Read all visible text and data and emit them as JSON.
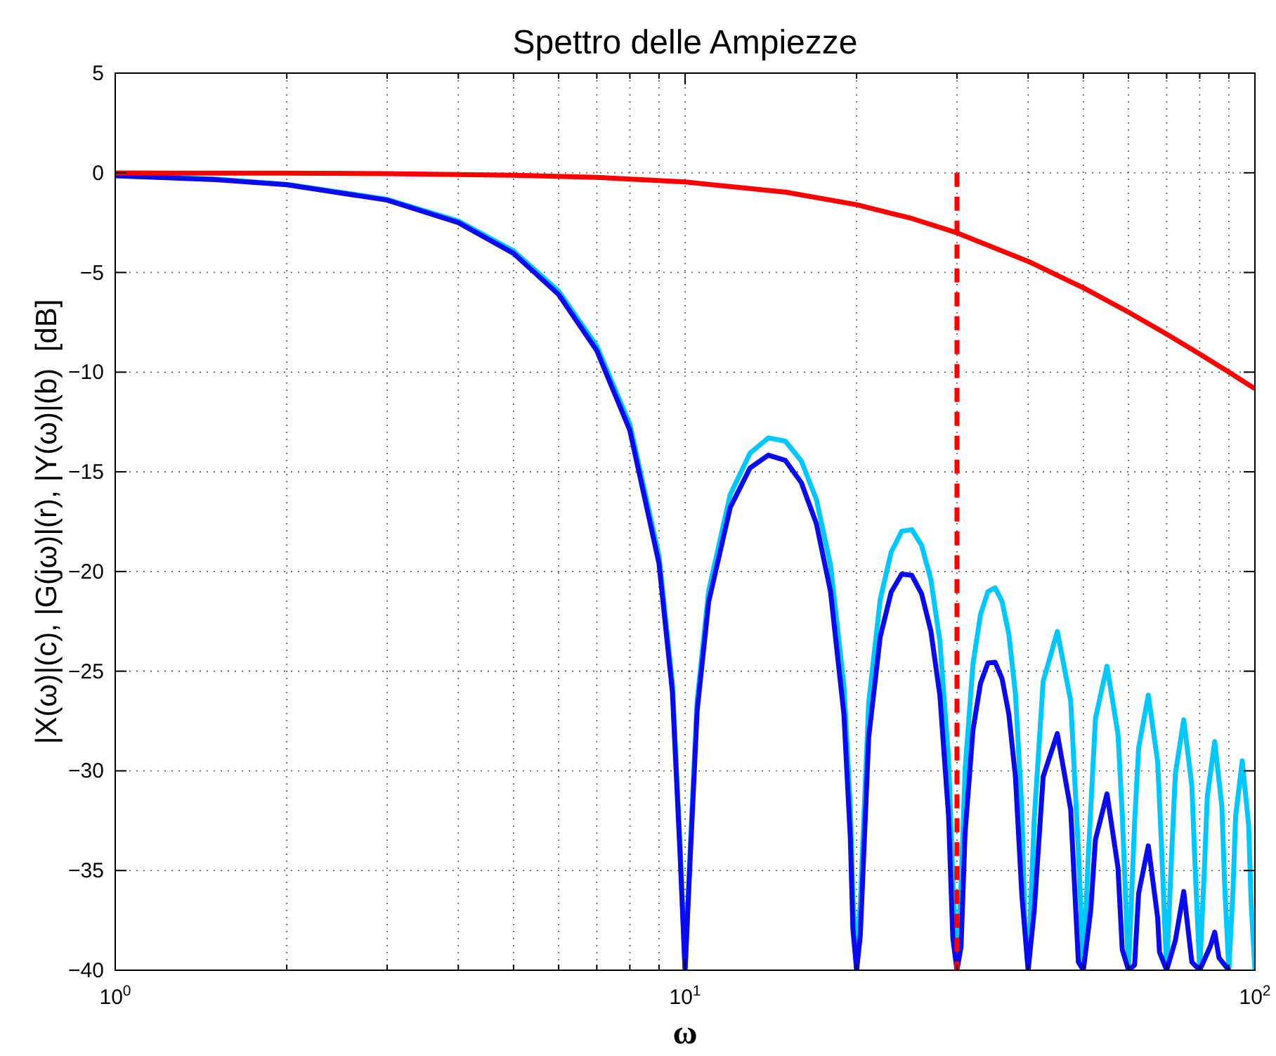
{
  "chart_data": {
    "type": "line",
    "title": "Spettro delle Ampiezze",
    "xlabel": "ω",
    "ylabel": "|X(ω)|(c), |G(jω)|(r), |Y(ω)|(b)  [dB]",
    "log": "x",
    "grid": true,
    "xlim": [
      1,
      100
    ],
    "ylim": [
      -40,
      5
    ],
    "xticks": [
      {
        "value": 1,
        "label": "10$^{0}$"
      },
      {
        "value": 2,
        "label": null
      },
      {
        "value": 3,
        "label": null
      },
      {
        "value": 4,
        "label": null
      },
      {
        "value": 5,
        "label": null
      },
      {
        "value": 6,
        "label": null
      },
      {
        "value": 7,
        "label": null
      },
      {
        "value": 8,
        "label": null
      },
      {
        "value": 9,
        "label": null
      },
      {
        "value": 10,
        "label": "10$^{1}$"
      },
      {
        "value": 20,
        "label": null
      },
      {
        "value": 30,
        "label": null
      },
      {
        "value": 40,
        "label": null
      },
      {
        "value": 50,
        "label": null
      },
      {
        "value": 60,
        "label": null
      },
      {
        "value": 70,
        "label": null
      },
      {
        "value": 80,
        "label": null
      },
      {
        "value": 90,
        "label": null
      },
      {
        "value": 100,
        "label": "10$^{2}$"
      }
    ],
    "yticks": [
      -40,
      -35,
      -30,
      -25,
      -20,
      -15,
      -10,
      -5,
      0,
      5
    ],
    "series": [
      {
        "color": "#00c8ff",
        "x": [
          1,
          1.5,
          2,
          3,
          4,
          5,
          6,
          7,
          8,
          9,
          9.5,
          9.8,
          10,
          10.2,
          10.5,
          11,
          12,
          13,
          14,
          15,
          16,
          17,
          18,
          19,
          19.5,
          19.7,
          20,
          20.3,
          21,
          22,
          23,
          24,
          25,
          26,
          27,
          28,
          29,
          29.5,
          30,
          30.5,
          31,
          32,
          33,
          34,
          35,
          36,
          37,
          38,
          39,
          39.5,
          40,
          41,
          42.5,
          45,
          47.5,
          49,
          50,
          51,
          52.5,
          55,
          57.5,
          58.5,
          60,
          61.5,
          62.5,
          65,
          67.5,
          68.5,
          70,
          71.5,
          72.5,
          75,
          77.5,
          78.5,
          80,
          81.5,
          82.5,
          85,
          87.5,
          88.5,
          90,
          91.5,
          92.5,
          95,
          97.5,
          98.5,
          100
        ],
        "values": [
          -0.14,
          -0.32,
          -0.58,
          -1.33,
          -2.42,
          -3.92,
          -5.94,
          -8.69,
          -12.62,
          -19.23,
          -25.61,
          -33.8,
          -40,
          -34.15,
          -26.48,
          -20.97,
          -16.14,
          -14.06,
          -13.3,
          -13.46,
          -14.46,
          -16.39,
          -19.67,
          -25.72,
          -31.86,
          -36.36,
          -40,
          -36.62,
          -26.59,
          -21.41,
          -19.02,
          -17.98,
          -17.9,
          -18.68,
          -20.41,
          -23.5,
          -29.39,
          -35.45,
          -40,
          -35.74,
          -29.97,
          -24.66,
          -22.15,
          -21.01,
          -20.82,
          -21.51,
          -23.15,
          -26.15,
          -31.97,
          -37.99,
          -40,
          -32.4,
          -25.52,
          -23.01,
          -26.49,
          -33.95,
          -40,
          -34.29,
          -27.36,
          -24.75,
          -28.15,
          -32.14,
          -40,
          -32.58,
          -28.87,
          -26.2,
          -29.54,
          -33.51,
          -40,
          -33.89,
          -30.16,
          -27.44,
          -30.74,
          -34.7,
          -40,
          -35.03,
          -31.28,
          -28.53,
          -31.79,
          -35.74,
          -40,
          -36.03,
          -32.28,
          -29.5,
          -32.73,
          -36.67,
          -40
        ]
      },
      {
        "color": "#0a0aee",
        "x": [
          1,
          1.5,
          2,
          3,
          4,
          5,
          6,
          7,
          8,
          9,
          9.5,
          9.8,
          10,
          10.2,
          10.5,
          11,
          12,
          13,
          14,
          15,
          16,
          17,
          18,
          19,
          19.5,
          19.7,
          20,
          20.3,
          21,
          22,
          23,
          24,
          25,
          26,
          27,
          28,
          29,
          29.5,
          30,
          30.5,
          31,
          32,
          33,
          34,
          35,
          36,
          37,
          38,
          39,
          40,
          41,
          42.5,
          45,
          47.5,
          49,
          50,
          51.5,
          52.5,
          55,
          57.5,
          58.5,
          60,
          61.5,
          62.5,
          65,
          67.5,
          68,
          70,
          72.5,
          75,
          77.5,
          80,
          83.5,
          85,
          86.5,
          90
        ],
        "values": [
          -0.15,
          -0.34,
          -0.6,
          -1.37,
          -2.5,
          -4.04,
          -6.11,
          -8.92,
          -12.92,
          -19.6,
          -26.03,
          -34.2,
          -40,
          -34.63,
          -26.98,
          -21.52,
          -16.79,
          -14.81,
          -14.16,
          -14.43,
          -15.55,
          -17.6,
          -21.01,
          -27.18,
          -33.39,
          -37.92,
          -40,
          -38.26,
          -28.32,
          -23.28,
          -21.03,
          -20.13,
          -20.19,
          -21.11,
          -22.99,
          -26.22,
          -32.26,
          -38.39,
          -40,
          -38.82,
          -33.12,
          -27.96,
          -25.6,
          -24.59,
          -24.55,
          -25.38,
          -27.17,
          -30.31,
          -36.27,
          -40,
          -36.98,
          -30.3,
          -28.13,
          -31.94,
          -39.59,
          -40,
          -37,
          -33.45,
          -31.15,
          -34.85,
          -38.96,
          -40,
          -39.74,
          -36.15,
          -33.76,
          -37.37,
          -39.09,
          -40,
          -38.51,
          -36.05,
          -39.59,
          -40,
          -38.8,
          -38.09,
          -39.38,
          -40
        ]
      },
      {
        "color": "#ff0000",
        "x": [
          1,
          2,
          3,
          5,
          7,
          10,
          15,
          20,
          25,
          30,
          40,
          50,
          60,
          70,
          80,
          90,
          100
        ],
        "values": [
          -0.01,
          -0.02,
          -0.04,
          -0.12,
          -0.23,
          -0.46,
          -0.97,
          -1.6,
          -2.29,
          -3.01,
          -4.44,
          -5.77,
          -6.99,
          -8.09,
          -9.09,
          -10,
          -10.83
        ]
      },
      {
        "color": "#ff0000",
        "line_style": "dashed",
        "x": [
          30,
          30
        ],
        "values": [
          0,
          -40
        ]
      }
    ]
  }
}
